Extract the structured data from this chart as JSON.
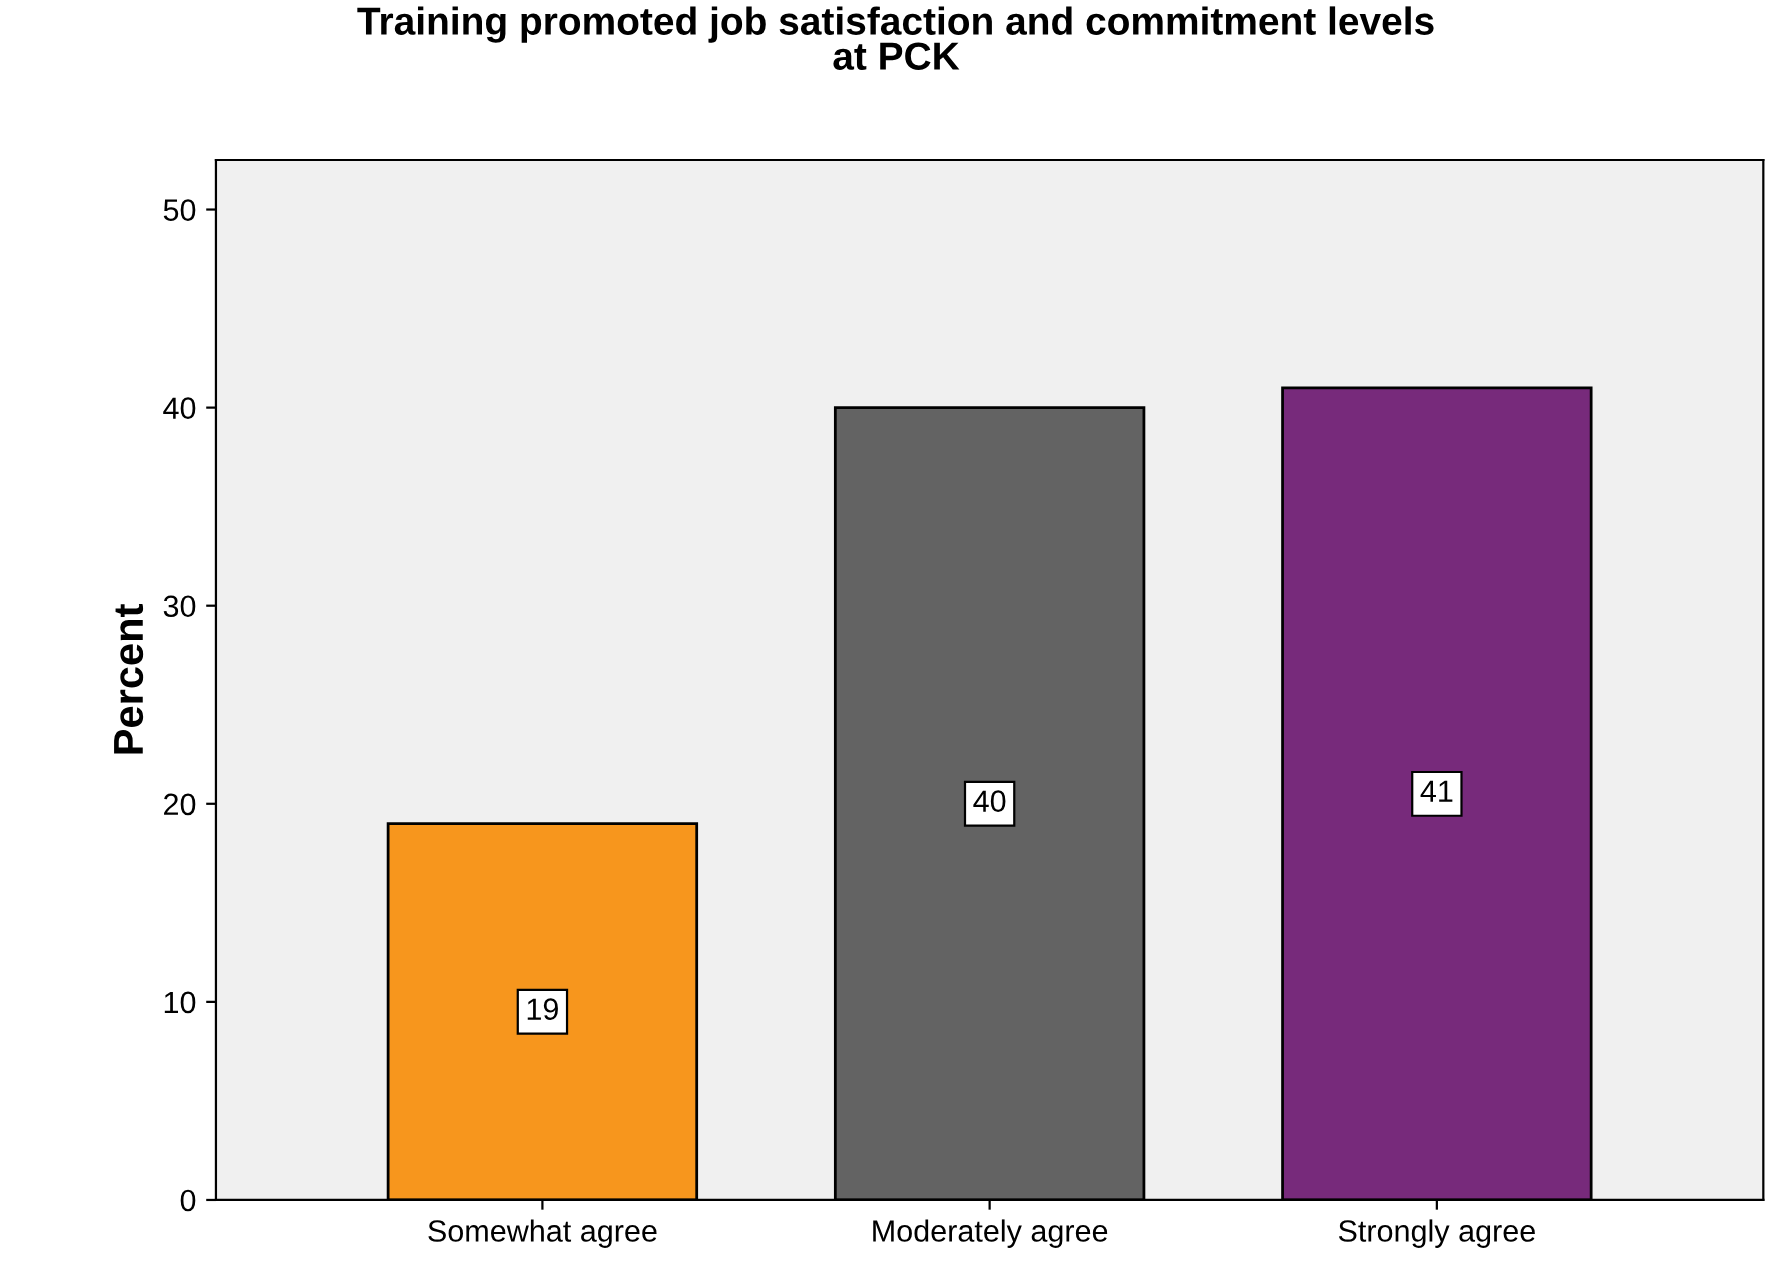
{
  "chart_data": {
    "type": "bar",
    "title": "Training promoted job satisfaction and commitment levels\nat PCK",
    "ylabel": "Percent",
    "categories": [
      "Somewhat agree",
      "Moderately agree",
      "Strongly agree"
    ],
    "values": [
      19,
      40,
      41
    ],
    "colors": [
      "#f7961d",
      "#636363",
      "#772a7b"
    ],
    "ylim": [
      0,
      52.5
    ],
    "yticks": [
      0,
      10,
      20,
      30,
      40,
      50
    ],
    "grid": false,
    "data_labels": true
  }
}
